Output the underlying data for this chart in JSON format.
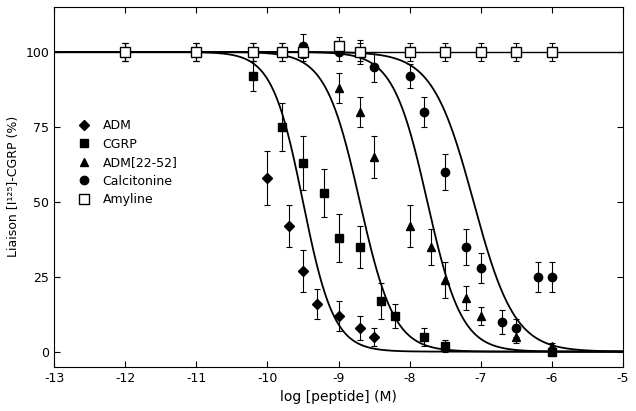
{
  "title": "",
  "xlabel": "log [peptide] (M)",
  "ylabel": "Liaison [I¹²⁵]-CGRP (%)",
  "xlim": [
    -13,
    -5
  ],
  "ylim": [
    -5,
    115
  ],
  "xticks": [
    -13,
    -12,
    -11,
    -10,
    -9,
    -8,
    -7,
    -6,
    -5
  ],
  "yticks": [
    0,
    25,
    50,
    75,
    100
  ],
  "background_color": "#ffffff",
  "series": [
    {
      "name": "ADM",
      "marker": "D",
      "fillstyle": "full",
      "ms": 5,
      "ec50_log": -9.5,
      "hill": 2.0,
      "top": 100,
      "bottom": 0,
      "data_x": [
        -12,
        -11,
        -10,
        -9.7,
        -9.5,
        -9.3,
        -9.0,
        -8.7,
        -8.5
      ],
      "data_y": [
        100,
        100,
        58,
        42,
        27,
        16,
        12,
        8,
        5
      ],
      "data_yerr": [
        3,
        3,
        9,
        7,
        7,
        5,
        5,
        4,
        3
      ]
    },
    {
      "name": "CGRP",
      "marker": "s",
      "fillstyle": "full",
      "ms": 6,
      "ec50_log": -8.7,
      "hill": 1.8,
      "top": 100,
      "bottom": 0,
      "data_x": [
        -12,
        -11,
        -10.2,
        -9.8,
        -9.5,
        -9.2,
        -9.0,
        -8.7,
        -8.4,
        -8.2,
        -7.8,
        -7.5,
        -6.0
      ],
      "data_y": [
        100,
        100,
        92,
        75,
        63,
        53,
        38,
        35,
        17,
        12,
        5,
        2,
        0
      ],
      "data_yerr": [
        3,
        3,
        5,
        8,
        9,
        8,
        8,
        7,
        6,
        4,
        3,
        2,
        1
      ]
    },
    {
      "name": "ADM[22-52]",
      "marker": "^",
      "fillstyle": "full",
      "ms": 6,
      "ec50_log": -7.75,
      "hill": 1.8,
      "top": 100,
      "bottom": 0,
      "data_x": [
        -10.2,
        -9.8,
        -9.0,
        -8.7,
        -8.5,
        -8.0,
        -7.7,
        -7.5,
        -7.2,
        -7.0,
        -6.5,
        -6.0
      ],
      "data_y": [
        100,
        100,
        88,
        80,
        65,
        42,
        35,
        24,
        18,
        12,
        5,
        2
      ],
      "data_yerr": [
        3,
        3,
        5,
        5,
        7,
        7,
        6,
        6,
        4,
        3,
        2,
        1
      ]
    },
    {
      "name": "Calcitonine",
      "marker": "o",
      "fillstyle": "full",
      "ms": 6,
      "ec50_log": -7.1,
      "hill": 1.5,
      "top": 100,
      "bottom": 0,
      "data_x": [
        -9.5,
        -9.0,
        -8.7,
        -8.5,
        -8.0,
        -7.8,
        -7.5,
        -7.2,
        -7.0,
        -6.7,
        -6.5,
        -6.2,
        -6.0
      ],
      "data_y": [
        102,
        100,
        100,
        95,
        92,
        80,
        60,
        35,
        28,
        10,
        8,
        25,
        25
      ],
      "data_yerr": [
        4,
        3,
        4,
        5,
        4,
        5,
        6,
        6,
        5,
        4,
        3,
        5,
        5
      ]
    },
    {
      "name": "Amyline",
      "marker": "s",
      "fillstyle": "none",
      "ms": 7,
      "ec50_log": null,
      "hill": null,
      "top": 100,
      "bottom": 100,
      "data_x": [
        -12,
        -11,
        -10.2,
        -9.8,
        -9.5,
        -9.0,
        -8.7,
        -8.0,
        -7.5,
        -7.0,
        -6.5,
        -6.0
      ],
      "data_y": [
        100,
        100,
        100,
        100,
        100,
        102,
        100,
        100,
        100,
        100,
        100,
        100
      ],
      "data_yerr": [
        3,
        3,
        3,
        3,
        3,
        3,
        3,
        3,
        3,
        3,
        3,
        3
      ]
    }
  ]
}
